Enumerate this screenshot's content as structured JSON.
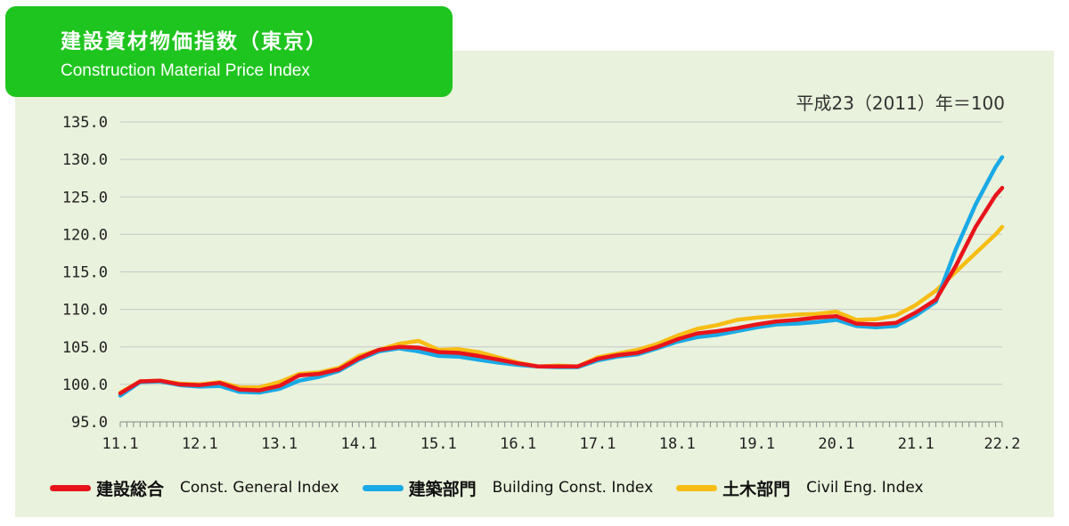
{
  "header": {
    "title_jp": "建設資材物価指数（東京）",
    "title_en": "Construction Material Price Index"
  },
  "base_note": "平成23（2011）年＝100",
  "colors": {
    "panel_bg": "#e9f2dc",
    "title_bg": "#1fc51f",
    "general": "#e8141b",
    "building": "#19a9e6",
    "civil": "#f7bd14"
  },
  "chart_data": {
    "type": "line",
    "title": "建設資材物価指数（東京）",
    "subtitle": "Construction Material Price Index",
    "x": [
      "11.1",
      "11.4",
      "11.7",
      "11.10",
      "12.1",
      "12.4",
      "12.7",
      "12.10",
      "13.1",
      "13.4",
      "13.7",
      "13.10",
      "14.1",
      "14.4",
      "14.7",
      "14.10",
      "15.1",
      "15.4",
      "15.7",
      "15.10",
      "16.1",
      "16.4",
      "16.7",
      "16.10",
      "17.1",
      "17.4",
      "17.7",
      "17.10",
      "18.1",
      "18.4",
      "18.7",
      "18.10",
      "19.1",
      "19.4",
      "19.7",
      "19.10",
      "20.1",
      "20.4",
      "20.7",
      "20.10",
      "21.1",
      "21.4",
      "21.7",
      "21.10",
      "22.1",
      "22.2"
    ],
    "x_tick_labels": [
      "11.1",
      "12.1",
      "13.1",
      "14.1",
      "15.1",
      "16.1",
      "17.1",
      "18.1",
      "19.1",
      "20.1",
      "21.1",
      "22.2"
    ],
    "ylim": [
      95.0,
      135.0
    ],
    "y_ticks": [
      "95.0",
      "100.0",
      "105.0",
      "110.0",
      "115.0",
      "120.0",
      "125.0",
      "130.0",
      "135.0"
    ],
    "grid": "horizontal",
    "legend_position": "bottom",
    "series": [
      {
        "name": "建設総合",
        "name_en": "Const. General  Index",
        "color": "#e8141b",
        "values": [
          98.8,
          100.4,
          100.5,
          100.0,
          99.9,
          100.2,
          99.3,
          99.2,
          99.8,
          101.2,
          101.4,
          102.0,
          103.5,
          104.6,
          105.0,
          104.9,
          104.3,
          104.2,
          103.8,
          103.3,
          102.8,
          102.4,
          102.4,
          102.4,
          103.4,
          103.9,
          104.2,
          105.0,
          106.0,
          106.8,
          107.1,
          107.5,
          108.0,
          108.4,
          108.6,
          108.9,
          109.1,
          108.1,
          108.0,
          108.2,
          109.6,
          111.3,
          115.8,
          121.0,
          125.2,
          126.2
        ]
      },
      {
        "name": "建築部門",
        "name_en": "Building Const. Index",
        "color": "#19a9e6",
        "values": [
          98.5,
          100.3,
          100.4,
          99.9,
          99.7,
          99.8,
          99.0,
          98.9,
          99.4,
          100.5,
          101.0,
          101.8,
          103.3,
          104.4,
          104.8,
          104.4,
          103.8,
          103.7,
          103.3,
          102.9,
          102.6,
          102.4,
          102.3,
          102.3,
          103.2,
          103.7,
          104.0,
          104.8,
          105.7,
          106.3,
          106.6,
          107.1,
          107.6,
          108.0,
          108.1,
          108.3,
          108.6,
          107.8,
          107.6,
          107.8,
          109.2,
          111.0,
          118.0,
          124.0,
          129.0,
          130.3
        ]
      },
      {
        "name": "土木部門",
        "name_en": "Civil Eng. Index",
        "color": "#f7bd14",
        "values": [
          98.9,
          100.4,
          100.5,
          100.1,
          100.0,
          100.3,
          99.6,
          99.6,
          100.3,
          101.4,
          101.6,
          102.2,
          103.8,
          104.6,
          105.4,
          105.8,
          104.6,
          104.7,
          104.3,
          103.6,
          102.9,
          102.4,
          102.5,
          102.4,
          103.6,
          104.1,
          104.6,
          105.4,
          106.5,
          107.4,
          107.9,
          108.6,
          108.9,
          109.1,
          109.3,
          109.4,
          109.7,
          108.6,
          108.7,
          109.2,
          110.6,
          112.5,
          115.0,
          117.5,
          120.0,
          121.0
        ]
      }
    ]
  }
}
